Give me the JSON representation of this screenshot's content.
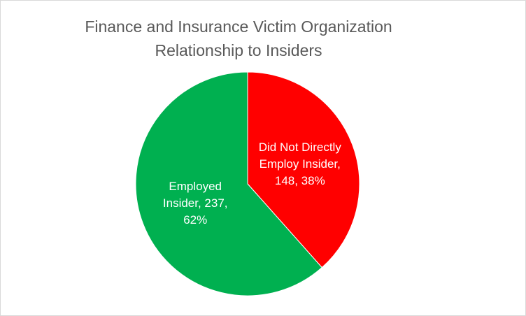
{
  "chart_data": {
    "type": "pie",
    "title": "Finance and Insurance Victim Organization Relationship to Insiders",
    "values": [
      148,
      237
    ],
    "value_labels": [
      "Did Not Directly Employ Insider, 148, 38%",
      "Employed Insider, 237, 62%"
    ],
    "colors": [
      "#ff0000",
      "#00b050"
    ],
    "start_angle": 0,
    "direction": "clockwise"
  }
}
